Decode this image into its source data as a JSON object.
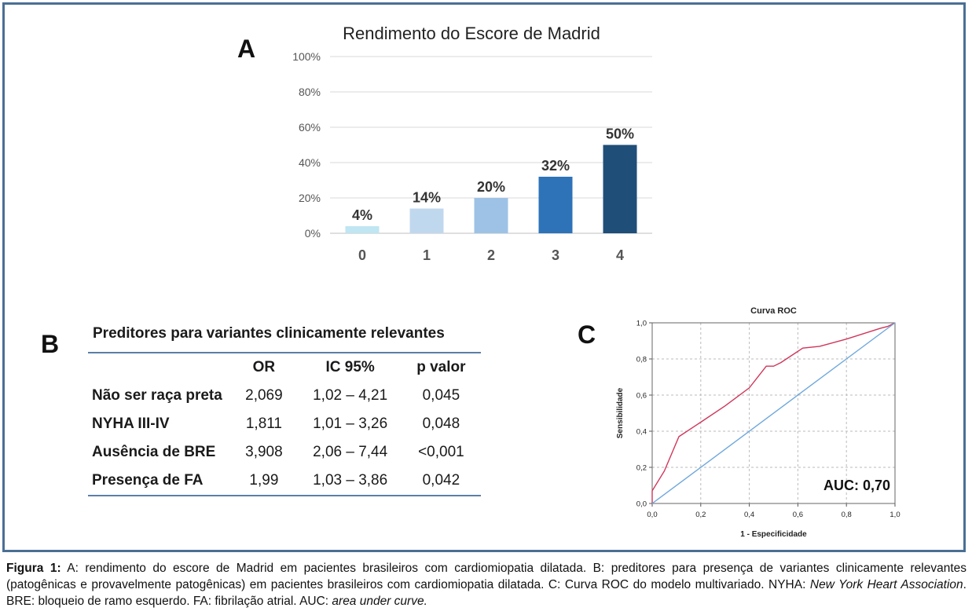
{
  "panels": {
    "a": "A",
    "b": "B",
    "c": "C"
  },
  "chart_data": [
    {
      "type": "bar",
      "title": "Rendimento do Escore de Madrid",
      "categories": [
        "0",
        "1",
        "2",
        "3",
        "4"
      ],
      "values": [
        4,
        14,
        20,
        32,
        50
      ],
      "data_labels": [
        "4%",
        "14%",
        "20%",
        "32%",
        "50%"
      ],
      "ylim": [
        0,
        100
      ],
      "yticks": [
        "0%",
        "20%",
        "40%",
        "60%",
        "80%",
        "100%"
      ],
      "bar_colors": [
        "#bfe6f2",
        "#c0d8ee",
        "#9dc2e6",
        "#2e73b8",
        "#1f4e78"
      ],
      "grid": true
    },
    {
      "type": "line",
      "title": "Curva ROC",
      "xlabel": "1 - Especificidade",
      "ylabel": "Sensibilidade",
      "xlim": [
        0,
        1
      ],
      "ylim": [
        0,
        1
      ],
      "xticks": [
        "0,0",
        "0,2",
        "0,4",
        "0,6",
        "0,8",
        "1,0"
      ],
      "yticks": [
        "0,0",
        "0,2",
        "0,4",
        "0,6",
        "0,8",
        "1,0"
      ],
      "annotation": "AUC: 0,70",
      "grid": true,
      "series": [
        {
          "color": "#d0365a",
          "points": [
            [
              0,
              0
            ],
            [
              0,
              0.07
            ],
            [
              0.05,
              0.18
            ],
            [
              0.11,
              0.37
            ],
            [
              0.2,
              0.45
            ],
            [
              0.3,
              0.54
            ],
            [
              0.4,
              0.64
            ],
            [
              0.47,
              0.76
            ],
            [
              0.5,
              0.76
            ],
            [
              0.53,
              0.78
            ],
            [
              0.62,
              0.86
            ],
            [
              0.69,
              0.87
            ],
            [
              0.8,
              0.91
            ],
            [
              0.94,
              0.97
            ],
            [
              0.97,
              0.98
            ],
            [
              1,
              1
            ]
          ]
        },
        {
          "color": "#6fa8dc",
          "points": [
            [
              0,
              0
            ],
            [
              1,
              1
            ]
          ]
        }
      ]
    }
  ],
  "table": {
    "title": "Preditores para variantes clinicamente relevantes",
    "headers": [
      "",
      "OR",
      "IC 95%",
      "p valor"
    ],
    "rows": [
      {
        "label": "Não ser raça preta",
        "or": "2,069",
        "ic": "1,02 – 4,21",
        "p": "0,045"
      },
      {
        "label": "NYHA III-IV",
        "or": "1,811",
        "ic": "1,01 – 3,26",
        "p": "0,048"
      },
      {
        "label": "Ausência de BRE",
        "or": "3,908",
        "ic": "2,06 – 7,44",
        "p": "<0,001"
      },
      {
        "label": "Presença de FA",
        "or": "1,99",
        "ic": "1,03 – 3,86",
        "p": "0,042"
      }
    ]
  },
  "caption": {
    "lead": "Figura 1:",
    "part1": " A: rendimento do escore de Madrid em pacientes brasileiros com cardiomiopatia dilatada. B: preditores para presença de variantes clinicamente relevantes (patogênicas e provavelmente patogênicas) em pacientes brasileiros com cardiomiopatia dilatada. C: Curva ROC do modelo multivariado. NYHA: ",
    "nyha": "New York Heart Association",
    "part2": ". BRE: bloqueio de ramo esquerdo. FA: fibrilação atrial. AUC: ",
    "auc": "area under curve."
  }
}
